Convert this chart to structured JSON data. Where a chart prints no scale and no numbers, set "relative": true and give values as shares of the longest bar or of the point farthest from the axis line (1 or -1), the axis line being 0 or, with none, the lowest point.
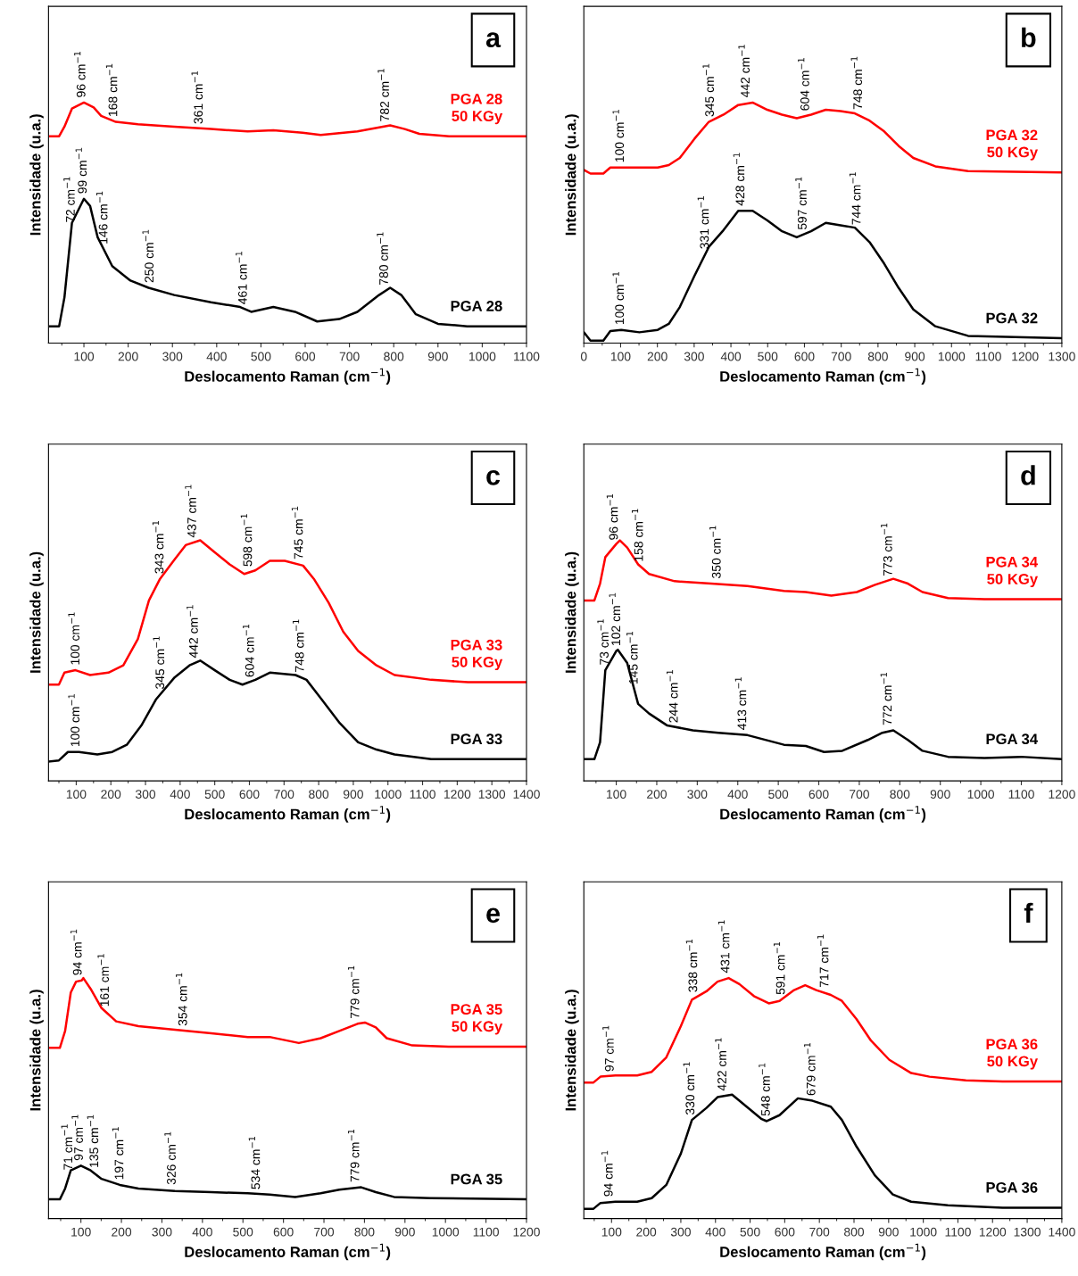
{
  "chart_data": [
    {
      "type": "line",
      "relative": true,
      "tick_labels": "x",
      "xlabel": "Deslocamento Raman (cm$^{−1}$)",
      "ylabel": "Intensidade (u.a.)",
      "xlim": [
        20,
        1100
      ],
      "xticks": [
        100,
        200,
        300,
        400,
        500,
        600,
        700,
        800,
        900,
        1000,
        1100
      ],
      "annotations": [
        "a",
        {
          "text": "96 cm$^{−1}$",
          "x": 96,
          "y": 1.0
        },
        {
          "text": "168 cm$^{−1}$",
          "x": 168,
          "y": 0.92
        },
        {
          "text": "361 cm$^{−1}$",
          "x": 361,
          "y": 0.89
        },
        {
          "text": "782 cm$^{−1}$",
          "x": 782,
          "y": 0.9
        },
        {
          "text": "72 cm$^{−1}$",
          "x": 72,
          "y": 0.48
        },
        {
          "text": "99 cm$^{−1}$",
          "x": 99,
          "y": 0.6
        },
        {
          "text": "146 cm$^{−1}$",
          "x": 146,
          "y": 0.39
        },
        {
          "text": "250 cm$^{−1}$",
          "x": 250,
          "y": 0.23
        },
        {
          "text": "461 cm$^{−1}$",
          "x": 461,
          "y": 0.14
        },
        {
          "text": "780 cm$^{−1}$",
          "x": 780,
          "y": 0.22
        }
      ],
      "series": [
        {
          "name": "PGA 28\n50 KGy",
          "color": "#ff0000",
          "x": [
            23,
            44,
            56,
            73,
            100,
            122,
            139,
            172,
            222,
            304,
            387,
            470,
            528,
            594,
            635,
            718,
            792,
            825,
            858,
            925,
            1100
          ],
          "values": [
            0.86,
            0.86,
            0.9,
            0.975,
            1.0,
            0.98,
            0.945,
            0.92,
            0.91,
            0.9,
            0.89,
            0.88,
            0.885,
            0.875,
            0.865,
            0.88,
            0.905,
            0.89,
            0.87,
            0.86,
            0.86
          ]
        },
        {
          "name": "PGA 28",
          "color": "#000000",
          "x": [
            23,
            44,
            56,
            73,
            100,
            114,
            131,
            164,
            205,
            246,
            304,
            387,
            453,
            478,
            528,
            577,
            627,
            677,
            718,
            767,
            792,
            817,
            850,
            900,
            966,
            1100
          ],
          "values": [
            0.07,
            0.07,
            0.19,
            0.5,
            0.6,
            0.57,
            0.44,
            0.32,
            0.26,
            0.23,
            0.2,
            0.17,
            0.15,
            0.13,
            0.15,
            0.13,
            0.09,
            0.1,
            0.13,
            0.2,
            0.23,
            0.2,
            0.12,
            0.08,
            0.07,
            0.07
          ]
        }
      ]
    },
    {
      "type": "line",
      "relative": true,
      "tick_labels": "x",
      "xlabel": "Deslocamento Raman (cm$^{−1}$)",
      "ylabel": "Intensidade (u.a.)",
      "xlim": [
        0,
        1300
      ],
      "xticks": [
        0,
        100,
        200,
        300,
        400,
        500,
        600,
        700,
        800,
        900,
        1000,
        1100,
        1200,
        1300
      ],
      "annotations": [
        "b",
        {
          "text": "100 cm$^{−1}$",
          "x": 100,
          "y": 0.73
        },
        {
          "text": "345 cm$^{−1}$",
          "x": 345,
          "y": 0.92
        },
        {
          "text": "442 cm$^{−1}$",
          "x": 442,
          "y": 1.0
        },
        {
          "text": "604 cm$^{−1}$",
          "x": 604,
          "y": 0.945
        },
        {
          "text": "748 cm$^{−1}$",
          "x": 748,
          "y": 0.95
        },
        {
          "text": "100 cm$^{−1}$",
          "x": 100,
          "y": 0.055
        },
        {
          "text": "331 cm$^{−1}$",
          "x": 331,
          "y": 0.37
        },
        {
          "text": "428 cm$^{−1}$",
          "x": 428,
          "y": 0.55
        },
        {
          "text": "597 cm$^{−1}$",
          "x": 597,
          "y": 0.45
        },
        {
          "text": "744 cm$^{−1}$",
          "x": 744,
          "y": 0.47
        }
      ],
      "series": [
        {
          "name": "PGA 32\n50 KGy",
          "color": "#ff0000",
          "x": [
            0,
            18,
            53,
            72,
            102,
            201,
            231,
            261,
            301,
            340,
            380,
            420,
            459,
            499,
            539,
            579,
            618,
            658,
            698,
            737,
            777,
            817,
            856,
            896,
            956,
            1045,
            1300
          ],
          "values": [
            0.72,
            0.705,
            0.705,
            0.73,
            0.73,
            0.73,
            0.74,
            0.77,
            0.85,
            0.92,
            0.95,
            0.99,
            1.0,
            0.97,
            0.95,
            0.935,
            0.95,
            0.97,
            0.965,
            0.955,
            0.925,
            0.88,
            0.82,
            0.77,
            0.735,
            0.715,
            0.71
          ]
        },
        {
          "name": "PGA 32",
          "color": "#000000",
          "x": [
            0,
            18,
            53,
            72,
            102,
            151,
            201,
            231,
            261,
            301,
            340,
            380,
            420,
            459,
            499,
            539,
            579,
            618,
            658,
            698,
            737,
            777,
            817,
            856,
            896,
            956,
            1045,
            1300
          ],
          "values": [
            0.045,
            0.01,
            0.01,
            0.05,
            0.055,
            0.045,
            0.055,
            0.08,
            0.15,
            0.28,
            0.4,
            0.47,
            0.55,
            0.55,
            0.51,
            0.465,
            0.44,
            0.465,
            0.5,
            0.49,
            0.48,
            0.42,
            0.33,
            0.23,
            0.14,
            0.07,
            0.03,
            0.02
          ]
        }
      ]
    },
    {
      "type": "line",
      "relative": true,
      "tick_labels": "x",
      "xlabel": "Deslocamento Raman (cm$^{−1}$)",
      "ylabel": "Intensidade (u.a.)",
      "xlim": [
        20,
        1400
      ],
      "xticks": [
        100,
        200,
        300,
        400,
        500,
        600,
        700,
        800,
        900,
        1000,
        1100,
        1200,
        1300,
        1400
      ],
      "annotations": [
        "c",
        {
          "text": "100 cm$^{−1}$",
          "x": 100,
          "y": 0.46
        },
        {
          "text": "343 cm$^{−1}$",
          "x": 343,
          "y": 0.84
        },
        {
          "text": "437 cm$^{−1}$",
          "x": 437,
          "y": 0.99
        },
        {
          "text": "598 cm$^{−1}$",
          "x": 598,
          "y": 0.87
        },
        {
          "text": "745 cm$^{−1}$",
          "x": 745,
          "y": 0.9
        },
        {
          "text": "100 cm$^{−1}$",
          "x": 100,
          "y": 0.12
        },
        {
          "text": "345 cm$^{−1}$",
          "x": 345,
          "y": 0.36
        },
        {
          "text": "442 cm$^{−1}$",
          "x": 442,
          "y": 0.49
        },
        {
          "text": "604 cm$^{−1}$",
          "x": 604,
          "y": 0.41
        },
        {
          "text": "748 cm$^{−1}$",
          "x": 748,
          "y": 0.43
        }
      ],
      "series": [
        {
          "name": "PGA 33\n50 KGy",
          "color": "#ff0000",
          "x": [
            21,
            50,
            66,
            98,
            140,
            193,
            236,
            278,
            310,
            342,
            384,
            416,
            458,
            500,
            543,
            585,
            617,
            659,
            702,
            755,
            786,
            829,
            871,
            914,
            967,
            1019,
            1125,
            1231,
            1400
          ],
          "values": [
            0.4,
            0.4,
            0.45,
            0.46,
            0.44,
            0.45,
            0.48,
            0.59,
            0.75,
            0.84,
            0.92,
            0.98,
            1.0,
            0.95,
            0.9,
            0.86,
            0.875,
            0.915,
            0.915,
            0.895,
            0.84,
            0.74,
            0.62,
            0.54,
            0.48,
            0.44,
            0.42,
            0.41,
            0.41
          ]
        },
        {
          "name": "PGA 33",
          "color": "#000000",
          "x": [
            21,
            50,
            76,
            108,
            161,
            204,
            246,
            288,
            331,
            384,
            427,
            458,
            500,
            543,
            580,
            617,
            659,
            733,
            765,
            808,
            861,
            914,
            967,
            1019,
            1125,
            1400
          ],
          "values": [
            0.08,
            0.085,
            0.12,
            0.12,
            0.11,
            0.12,
            0.15,
            0.23,
            0.34,
            0.43,
            0.48,
            0.5,
            0.46,
            0.42,
            0.4,
            0.42,
            0.45,
            0.44,
            0.42,
            0.34,
            0.24,
            0.16,
            0.13,
            0.11,
            0.09,
            0.09
          ]
        }
      ]
    },
    {
      "type": "line",
      "relative": true,
      "tick_labels": "x",
      "xlabel": "Deslocamento Raman (cm$^{−1}$)",
      "ylabel": "Intensidade (u.a.)",
      "xlim": [
        20,
        1200
      ],
      "xticks": [
        100,
        200,
        300,
        400,
        500,
        600,
        700,
        800,
        900,
        1000,
        1100,
        1200
      ],
      "annotations": [
        "d",
        {
          "text": "96 cm$^{−1}$",
          "x": 96,
          "y": 0.98
        },
        {
          "text": "158 cm$^{−1}$",
          "x": 158,
          "y": 0.89
        },
        {
          "text": "350 cm$^{−1}$",
          "x": 350,
          "y": 0.82
        },
        {
          "text": "773 cm$^{−1}$",
          "x": 773,
          "y": 0.83
        },
        {
          "text": "73 cm$^{−1}$",
          "x": 73,
          "y": 0.46
        },
        {
          "text": "102 cm$^{−1}$",
          "x": 102,
          "y": 0.54
        },
        {
          "text": "145 cm$^{−1}$",
          "x": 145,
          "y": 0.38
        },
        {
          "text": "244 cm$^{−1}$",
          "x": 244,
          "y": 0.22
        },
        {
          "text": "413 cm$^{−1}$",
          "x": 413,
          "y": 0.19
        },
        {
          "text": "772 cm$^{−1}$",
          "x": 772,
          "y": 0.21
        }
      ],
      "series": [
        {
          "name": "PGA 34\n50 KGy",
          "color": "#ff0000",
          "x": [
            22,
            46,
            60,
            73,
            100,
            109,
            127,
            154,
            181,
            244,
            334,
            424,
            514,
            568,
            631,
            694,
            739,
            784,
            820,
            856,
            919,
            1009,
            1200
          ],
          "values": [
            0.75,
            0.75,
            0.82,
            0.93,
            0.985,
            1.0,
            0.97,
            0.9,
            0.86,
            0.83,
            0.82,
            0.81,
            0.79,
            0.785,
            0.77,
            0.785,
            0.815,
            0.84,
            0.82,
            0.785,
            0.76,
            0.755,
            0.755
          ]
        },
        {
          "name": "PGA 34",
          "color": "#000000",
          "x": [
            22,
            46,
            60,
            73,
            100,
            104,
            127,
            154,
            181,
            226,
            289,
            352,
            424,
            514,
            568,
            613,
            658,
            721,
            757,
            784,
            820,
            856,
            919,
            1009,
            1099,
            1200
          ],
          "values": [
            0.09,
            0.09,
            0.16,
            0.46,
            0.54,
            0.545,
            0.49,
            0.32,
            0.28,
            0.23,
            0.21,
            0.2,
            0.19,
            0.15,
            0.145,
            0.12,
            0.125,
            0.17,
            0.2,
            0.21,
            0.17,
            0.125,
            0.1,
            0.095,
            0.1,
            0.09
          ]
        }
      ]
    },
    {
      "type": "line",
      "relative": true,
      "tick_labels": "x",
      "xlabel": "Deslocamento Raman (cm$^{−1}$)",
      "ylabel": "Intensidade (u.a.)",
      "xlim": [
        20,
        1200
      ],
      "xticks": [
        100,
        200,
        300,
        400,
        500,
        600,
        700,
        800,
        900,
        1000,
        1100,
        1200
      ],
      "annotations": [
        "e",
        {
          "text": "94 cm$^{−1}$",
          "x": 94,
          "y": 0.99
        },
        {
          "text": "161 cm$^{−1}$",
          "x": 161,
          "y": 0.86
        },
        {
          "text": "354 cm$^{−1}$",
          "x": 354,
          "y": 0.78
        },
        {
          "text": "779 cm$^{−1}$",
          "x": 779,
          "y": 0.81
        },
        {
          "text": "71 cm$^{−1}$",
          "x": 71,
          "y": 0.18
        },
        {
          "text": "97 cm$^{−1}$",
          "x": 97,
          "y": 0.22
        },
        {
          "text": "135 cm$^{−1}$",
          "x": 135,
          "y": 0.19
        },
        {
          "text": "197 cm$^{−1}$",
          "x": 197,
          "y": 0.14
        },
        {
          "text": "326 cm$^{−1}$",
          "x": 326,
          "y": 0.12
        },
        {
          "text": "534 cm$^{−1}$",
          "x": 534,
          "y": 0.1
        },
        {
          "text": "779 cm$^{−1}$",
          "x": 779,
          "y": 0.13
        }
      ],
      "series": [
        {
          "name": "PGA 35\n50 KGy",
          "color": "#ff0000",
          "x": [
            22,
            48,
            61,
            75,
            88,
            102,
            106,
            124,
            151,
            187,
            242,
            332,
            422,
            512,
            566,
            638,
            692,
            738,
            783,
            801,
            828,
            855,
            918,
            1008,
            1200
          ],
          "values": [
            0.71,
            0.71,
            0.78,
            0.94,
            0.985,
            0.99,
            1.0,
            0.955,
            0.875,
            0.82,
            0.8,
            0.785,
            0.77,
            0.755,
            0.755,
            0.73,
            0.75,
            0.78,
            0.81,
            0.815,
            0.795,
            0.75,
            0.72,
            0.715,
            0.715
          ]
        },
        {
          "name": "PGA 35",
          "color": "#000000",
          "x": [
            22,
            48,
            61,
            75,
            100,
            124,
            151,
            196,
            242,
            332,
            422,
            512,
            566,
            629,
            692,
            738,
            792,
            828,
            873,
            963,
            1200
          ],
          "values": [
            0.08,
            0.08,
            0.125,
            0.2,
            0.22,
            0.2,
            0.165,
            0.14,
            0.125,
            0.115,
            0.11,
            0.105,
            0.1,
            0.09,
            0.105,
            0.12,
            0.13,
            0.11,
            0.09,
            0.085,
            0.08
          ]
        }
      ]
    },
    {
      "type": "line",
      "relative": true,
      "tick_labels": "x",
      "xlabel": "Deslocamento Raman (cm$^{−1}$)",
      "ylabel": "Intensidade (u.a.)",
      "xlim": [
        20,
        1400
      ],
      "xticks": [
        100,
        200,
        300,
        400,
        500,
        600,
        700,
        800,
        900,
        1000,
        1100,
        1200,
        1300,
        1400
      ],
      "annotations": [
        "f",
        {
          "text": "97 cm$^{−1}$",
          "x": 97,
          "y": 0.59
        },
        {
          "text": "338 cm$^{−1}$",
          "x": 338,
          "y": 0.92
        },
        {
          "text": "431 cm$^{−1}$",
          "x": 431,
          "y": 1.0
        },
        {
          "text": "591 cm$^{−1}$",
          "x": 591,
          "y": 0.91
        },
        {
          "text": "717 cm$^{−1}$",
          "x": 717,
          "y": 0.94
        },
        {
          "text": "94 cm$^{−1}$",
          "x": 94,
          "y": 0.07
        },
        {
          "text": "330 cm$^{−1}$",
          "x": 330,
          "y": 0.41
        },
        {
          "text": "422 cm$^{−1}$",
          "x": 422,
          "y": 0.51
        },
        {
          "text": "548 cm$^{−1}$",
          "x": 548,
          "y": 0.405
        },
        {
          "text": "679 cm$^{−1}$",
          "x": 679,
          "y": 0.49
        }
      ],
      "series": [
        {
          "name": "PGA 36\n50 KGy",
          "color": "#ff0000",
          "x": [
            20,
            47,
            68,
            111,
            174,
            216,
            258,
            300,
            332,
            374,
            406,
            438,
            469,
            511,
            554,
            585,
            627,
            659,
            691,
            733,
            765,
            807,
            849,
            902,
            965,
            1018,
            1123,
            1229,
            1400
          ],
          "values": [
            0.565,
            0.565,
            0.59,
            0.595,
            0.595,
            0.61,
            0.67,
            0.8,
            0.91,
            0.945,
            0.985,
            1.0,
            0.975,
            0.925,
            0.895,
            0.905,
            0.95,
            0.97,
            0.95,
            0.93,
            0.905,
            0.83,
            0.74,
            0.66,
            0.605,
            0.59,
            0.575,
            0.57,
            0.57
          ]
        },
        {
          "name": "PGA 36",
          "color": "#000000",
          "x": [
            20,
            47,
            68,
            111,
            174,
            216,
            258,
            300,
            332,
            374,
            406,
            448,
            490,
            532,
            548,
            585,
            638,
            680,
            733,
            765,
            807,
            860,
            912,
            965,
            1071,
            1229,
            1400
          ],
          "values": [
            0.04,
            0.04,
            0.065,
            0.07,
            0.07,
            0.085,
            0.14,
            0.27,
            0.41,
            0.46,
            0.505,
            0.515,
            0.465,
            0.415,
            0.405,
            0.43,
            0.5,
            0.49,
            0.465,
            0.41,
            0.3,
            0.18,
            0.1,
            0.07,
            0.055,
            0.045,
            0.045
          ]
        }
      ]
    }
  ]
}
